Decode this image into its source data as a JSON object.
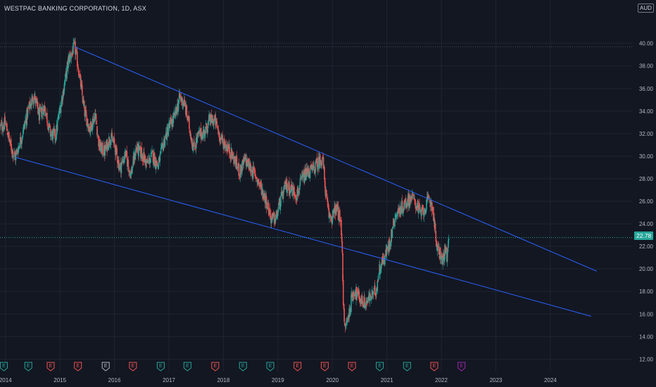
{
  "header": {
    "title": "WESTPAC BANKING CORPORATION, 1D, ASX",
    "currency": "AUD"
  },
  "price_tag": "22.78",
  "colors": {
    "background": "#131722",
    "grid": "#1f2430",
    "axis_text": "#b2b5be",
    "candle_up": "#26a69a",
    "candle_down": "#ef5350",
    "trendline": "#2962ff"
  },
  "chart_data": {
    "type": "candlestick",
    "title": "WESTPAC BANKING CORPORATION, 1D, ASX",
    "y_axis_side": "right",
    "ylim": [
      11.4,
      42.6
    ],
    "xlim": [
      2013.9,
      2025.5
    ],
    "y_ticks": [
      "40.00",
      "38.00",
      "36.00",
      "34.00",
      "32.00",
      "30.00",
      "28.00",
      "26.00",
      "24.00",
      "22.00",
      "20.00",
      "18.00",
      "16.00",
      "14.00",
      "12.00"
    ],
    "x_ticks": [
      "2014",
      "2015",
      "2016",
      "2017",
      "2018",
      "2019",
      "2020",
      "2021",
      "2022",
      "2023",
      "2024"
    ],
    "last_price": 22.78,
    "price_path": [
      [
        2013.9,
        32.5
      ],
      [
        2014.0,
        32.9
      ],
      [
        2014.1,
        30.8
      ],
      [
        2014.18,
        29.9
      ],
      [
        2014.3,
        31.8
      ],
      [
        2014.42,
        34.1
      ],
      [
        2014.52,
        35.4
      ],
      [
        2014.62,
        33.6
      ],
      [
        2014.72,
        34.4
      ],
      [
        2014.82,
        32.0
      ],
      [
        2014.92,
        31.8
      ],
      [
        2015.0,
        34.2
      ],
      [
        2015.08,
        36.3
      ],
      [
        2015.16,
        38.6
      ],
      [
        2015.27,
        39.7
      ],
      [
        2015.34,
        37.8
      ],
      [
        2015.45,
        33.9
      ],
      [
        2015.55,
        32.4
      ],
      [
        2015.65,
        33.8
      ],
      [
        2015.72,
        30.8
      ],
      [
        2015.82,
        30.4
      ],
      [
        2015.92,
        31.7
      ],
      [
        2016.0,
        31.0
      ],
      [
        2016.1,
        28.9
      ],
      [
        2016.2,
        30.2
      ],
      [
        2016.3,
        28.4
      ],
      [
        2016.4,
        30.7
      ],
      [
        2016.5,
        30.2
      ],
      [
        2016.6,
        29.3
      ],
      [
        2016.7,
        30.1
      ],
      [
        2016.8,
        29.1
      ],
      [
        2016.9,
        31.2
      ],
      [
        2017.0,
        32.6
      ],
      [
        2017.1,
        33.4
      ],
      [
        2017.2,
        35.2
      ],
      [
        2017.28,
        34.7
      ],
      [
        2017.36,
        33.0
      ],
      [
        2017.45,
        30.7
      ],
      [
        2017.55,
        31.9
      ],
      [
        2017.65,
        32.1
      ],
      [
        2017.75,
        33.2
      ],
      [
        2017.85,
        33.1
      ],
      [
        2017.95,
        31.5
      ],
      [
        2018.08,
        30.8
      ],
      [
        2018.2,
        29.7
      ],
      [
        2018.3,
        28.6
      ],
      [
        2018.4,
        29.7
      ],
      [
        2018.5,
        28.9
      ],
      [
        2018.6,
        28.2
      ],
      [
        2018.7,
        27.1
      ],
      [
        2018.8,
        25.9
      ],
      [
        2018.88,
        24.4
      ],
      [
        2018.96,
        24.4
      ],
      [
        2019.05,
        26.1
      ],
      [
        2019.15,
        27.4
      ],
      [
        2019.25,
        27.1
      ],
      [
        2019.35,
        26.6
      ],
      [
        2019.45,
        28.0
      ],
      [
        2019.55,
        28.6
      ],
      [
        2019.65,
        28.8
      ],
      [
        2019.75,
        29.5
      ],
      [
        2019.82,
        29.9
      ],
      [
        2019.88,
        26.6
      ],
      [
        2019.93,
        24.8
      ],
      [
        2020.0,
        24.6
      ],
      [
        2020.05,
        25.3
      ],
      [
        2020.1,
        25.1
      ],
      [
        2020.15,
        24.1
      ],
      [
        2020.18,
        22.2
      ],
      [
        2020.2,
        17.1
      ],
      [
        2020.22,
        14.7
      ],
      [
        2020.25,
        15.1
      ],
      [
        2020.3,
        15.9
      ],
      [
        2020.35,
        17.3
      ],
      [
        2020.4,
        18.1
      ],
      [
        2020.5,
        17.4
      ],
      [
        2020.6,
        16.9
      ],
      [
        2020.7,
        17.5
      ],
      [
        2020.8,
        18.1
      ],
      [
        2020.88,
        20.4
      ],
      [
        2020.95,
        20.9
      ],
      [
        2021.05,
        22.3
      ],
      [
        2021.15,
        24.7
      ],
      [
        2021.25,
        25.3
      ],
      [
        2021.35,
        25.9
      ],
      [
        2021.45,
        26.4
      ],
      [
        2021.55,
        25.7
      ],
      [
        2021.62,
        24.8
      ],
      [
        2021.7,
        25.4
      ],
      [
        2021.78,
        26.2
      ],
      [
        2021.84,
        25.5
      ],
      [
        2021.88,
        23.6
      ],
      [
        2021.92,
        21.7
      ],
      [
        2021.98,
        21.4
      ],
      [
        2022.02,
        20.6
      ],
      [
        2022.06,
        21.6
      ],
      [
        2022.1,
        20.9
      ],
      [
        2022.14,
        22.6
      ]
    ],
    "trendlines": [
      {
        "name": "upper",
        "from": [
          2015.27,
          39.7
        ],
        "to": [
          2024.85,
          19.8
        ]
      },
      {
        "name": "lower",
        "from": [
          2014.18,
          29.9
        ],
        "to": [
          2024.75,
          15.8
        ]
      }
    ],
    "earnings_markers": [
      {
        "x": 2013.97,
        "label": "E",
        "color": "#26a69a"
      },
      {
        "x": 2014.42,
        "label": "E",
        "color": "#26a69a"
      },
      {
        "x": 2014.83,
        "label": "E",
        "color": "#ef5350"
      },
      {
        "x": 2015.33,
        "label": "E",
        "color": "#ef5350"
      },
      {
        "x": 2015.84,
        "label": "E",
        "color": "#b2b5be"
      },
      {
        "x": 2016.34,
        "label": "E",
        "color": "#ef5350"
      },
      {
        "x": 2016.85,
        "label": "E",
        "color": "#26a69a"
      },
      {
        "x": 2017.34,
        "label": "E",
        "color": "#26a69a"
      },
      {
        "x": 2017.85,
        "label": "E",
        "color": "#ef5350"
      },
      {
        "x": 2018.36,
        "label": "E",
        "color": "#26a69a"
      },
      {
        "x": 2018.86,
        "label": "E",
        "color": "#26a69a"
      },
      {
        "x": 2019.36,
        "label": "E",
        "color": "#ef5350"
      },
      {
        "x": 2019.86,
        "label": "E",
        "color": "#ef5350"
      },
      {
        "x": 2020.36,
        "label": "E",
        "color": "#ef5350"
      },
      {
        "x": 2020.87,
        "label": "E",
        "color": "#26a69a"
      },
      {
        "x": 2021.37,
        "label": "E",
        "color": "#26a69a"
      },
      {
        "x": 2021.87,
        "label": "E",
        "color": "#ef5350"
      },
      {
        "x": 2022.37,
        "label": "E",
        "color": "#9c27b0"
      }
    ],
    "grid": true
  }
}
